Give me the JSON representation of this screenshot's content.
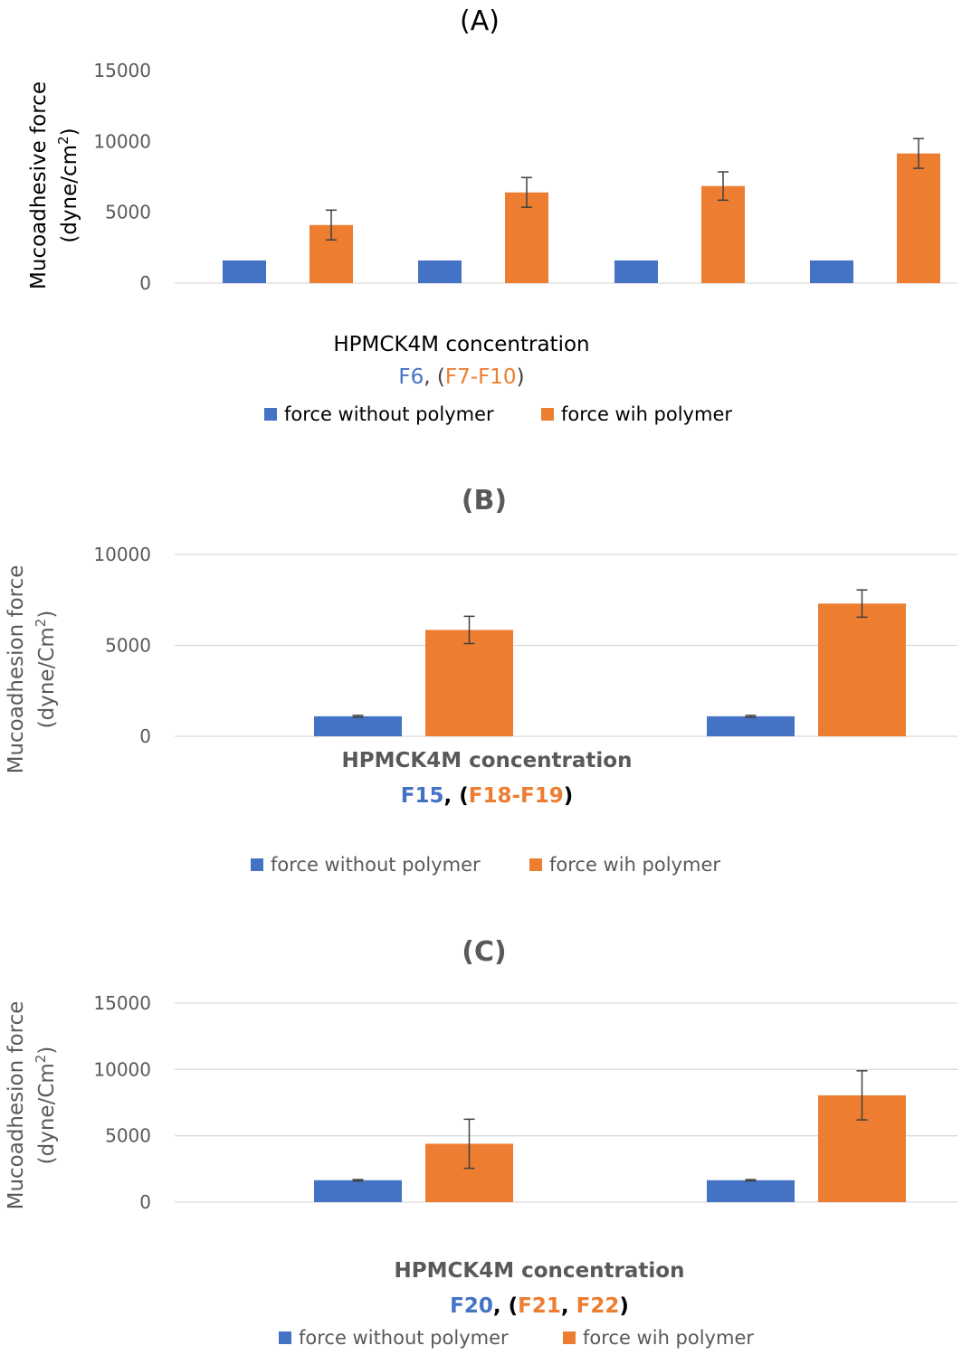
{
  "colors": {
    "blue": "#4472C4",
    "orange": "#ED7D31",
    "dark": "#404040",
    "gray": "#595959",
    "grid": "#d9d9d9",
    "black": "#000000"
  },
  "chart_data": [
    {
      "panel": "(A)",
      "type": "bar",
      "title": "(A)",
      "ylabel": [
        "Mucoadhesive force",
        "(dyne/cm",
        "2",
        ")"
      ],
      "xlabel_line1": "HPMCK4M concentration",
      "xlabel_line2": [
        {
          "text": "F6",
          "color": "blue"
        },
        {
          "text": ", (",
          "color": "dark"
        },
        {
          "text": "F7-F10",
          "color": "orange"
        },
        {
          "text": ")",
          "color": "dark"
        }
      ],
      "yticks": [
        0,
        5000,
        10000,
        15000
      ],
      "ylim": [
        0,
        15000
      ],
      "grid": false,
      "legend_position": "bottom",
      "categories": [
        "",
        "",
        "",
        ""
      ],
      "series": [
        {
          "name": "force without polymer",
          "color": "blue",
          "values": [
            1600,
            1600,
            1600,
            1600
          ],
          "errors": [
            0,
            0,
            0,
            0
          ]
        },
        {
          "name": "force wih polymer",
          "color": "orange",
          "values": [
            4100,
            6400,
            6850,
            9150
          ],
          "errors": [
            1050,
            1050,
            1000,
            1050
          ]
        }
      ]
    },
    {
      "panel": "(B)",
      "type": "bar",
      "title": "(B)",
      "ylabel": [
        "Mucoadhesion force",
        "(dyne/Cm",
        "2",
        ")"
      ],
      "xlabel_line1": "HPMCK4M concentration",
      "xlabel_line2": [
        {
          "text": "F15",
          "color": "blue"
        },
        {
          "text": ", (",
          "color": "black"
        },
        {
          "text": "F18-F19",
          "color": "orange"
        },
        {
          "text": ")",
          "color": "black"
        }
      ],
      "yticks": [
        0,
        5000,
        10000
      ],
      "ylim": [
        0,
        10000
      ],
      "grid": true,
      "legend_position": "bottom",
      "categories": [
        "",
        ""
      ],
      "series": [
        {
          "name": "force without polymer",
          "color": "blue",
          "values": [
            1100,
            1100
          ],
          "errors": [
            50,
            50
          ]
        },
        {
          "name": "force wih polymer",
          "color": "orange",
          "values": [
            5850,
            7300
          ],
          "errors": [
            750,
            750
          ]
        }
      ]
    },
    {
      "panel": "(C)",
      "type": "bar",
      "title": "(C)",
      "ylabel": [
        "Mucoadhesion force",
        "(dyne/Cm",
        "2",
        ")"
      ],
      "xlabel_line1": "HPMCK4M concentration",
      "xlabel_line2": [
        {
          "text": "F20",
          "color": "blue"
        },
        {
          "text": ", (",
          "color": "black"
        },
        {
          "text": "F21",
          "color": "orange"
        },
        {
          "text": ", ",
          "color": "black"
        },
        {
          "text": "F22",
          "color": "orange"
        },
        {
          "text": ")",
          "color": "black"
        }
      ],
      "yticks": [
        0,
        5000,
        10000,
        15000
      ],
      "ylim": [
        0,
        15000
      ],
      "grid": true,
      "legend_position": "bottom",
      "categories": [
        "",
        ""
      ],
      "series": [
        {
          "name": "force without polymer",
          "color": "blue",
          "values": [
            1650,
            1650
          ],
          "errors": [
            50,
            50
          ]
        },
        {
          "name": "force wih polymer",
          "color": "orange",
          "values": [
            4400,
            8050
          ],
          "errors": [
            1850,
            1850
          ]
        }
      ]
    }
  ]
}
